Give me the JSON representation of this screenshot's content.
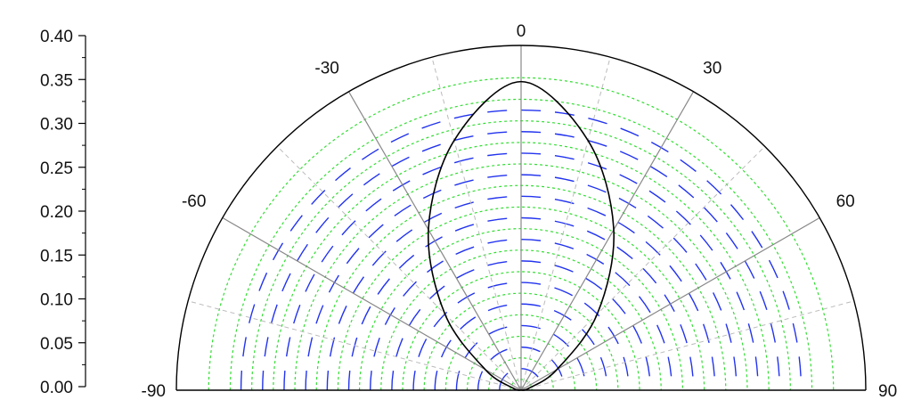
{
  "chart_data": {
    "type": "polar",
    "subtype": "half-polar-contour",
    "radial_axis": {
      "ticks": [
        "0.00",
        "0.05",
        "0.10",
        "0.15",
        "0.20",
        "0.25",
        "0.30",
        "0.35",
        "0.40"
      ],
      "range": [
        0,
        0.4
      ]
    },
    "angular_axis": {
      "labels": [
        "-90",
        "-60",
        "-30",
        "0",
        "30",
        "60",
        "90"
      ],
      "values": [
        -90,
        -60,
        -30,
        0,
        30,
        60,
        90
      ],
      "range": [
        -90,
        90
      ]
    },
    "grid": {
      "solid_spokes_deg": [
        -60,
        -30,
        0,
        30,
        60
      ],
      "dashed_spokes_deg": [
        -75,
        -45,
        -15,
        15,
        45,
        75
      ],
      "green_dotted_radii": [
        0.0125,
        0.0375,
        0.0625,
        0.0875,
        0.1125,
        0.1375,
        0.1625,
        0.1875,
        0.2125,
        0.2375,
        0.2625,
        0.2875,
        0.3125,
        0.3375,
        0.3625
      ],
      "blue_dashed_radii": [
        0.025,
        0.05,
        0.075,
        0.1,
        0.125,
        0.15,
        0.175,
        0.2,
        0.225,
        0.25,
        0.275,
        0.3,
        0.325
      ],
      "green_color": "#33dd33",
      "blue_color": "#2233ee",
      "spoke_color": "#888888",
      "dashed_spoke_color": "#bbbbbb"
    },
    "series": [
      {
        "style": "solid-black",
        "points": [
          {
            "theta": -75,
            "r": 0.01
          },
          {
            "theta": -60,
            "r": 0.048
          },
          {
            "theta": -45,
            "r": 0.125
          },
          {
            "theta": -30,
            "r": 0.215
          },
          {
            "theta": -15,
            "r": 0.3
          },
          {
            "theta": 0,
            "r": 0.358
          },
          {
            "theta": 15,
            "r": 0.3
          },
          {
            "theta": 30,
            "r": 0.215
          },
          {
            "theta": 45,
            "r": 0.125
          },
          {
            "theta": 60,
            "r": 0.048
          },
          {
            "theta": 75,
            "r": 0.01
          }
        ]
      }
    ],
    "colors": {
      "outline": "#000000",
      "axis": "#000000"
    }
  }
}
